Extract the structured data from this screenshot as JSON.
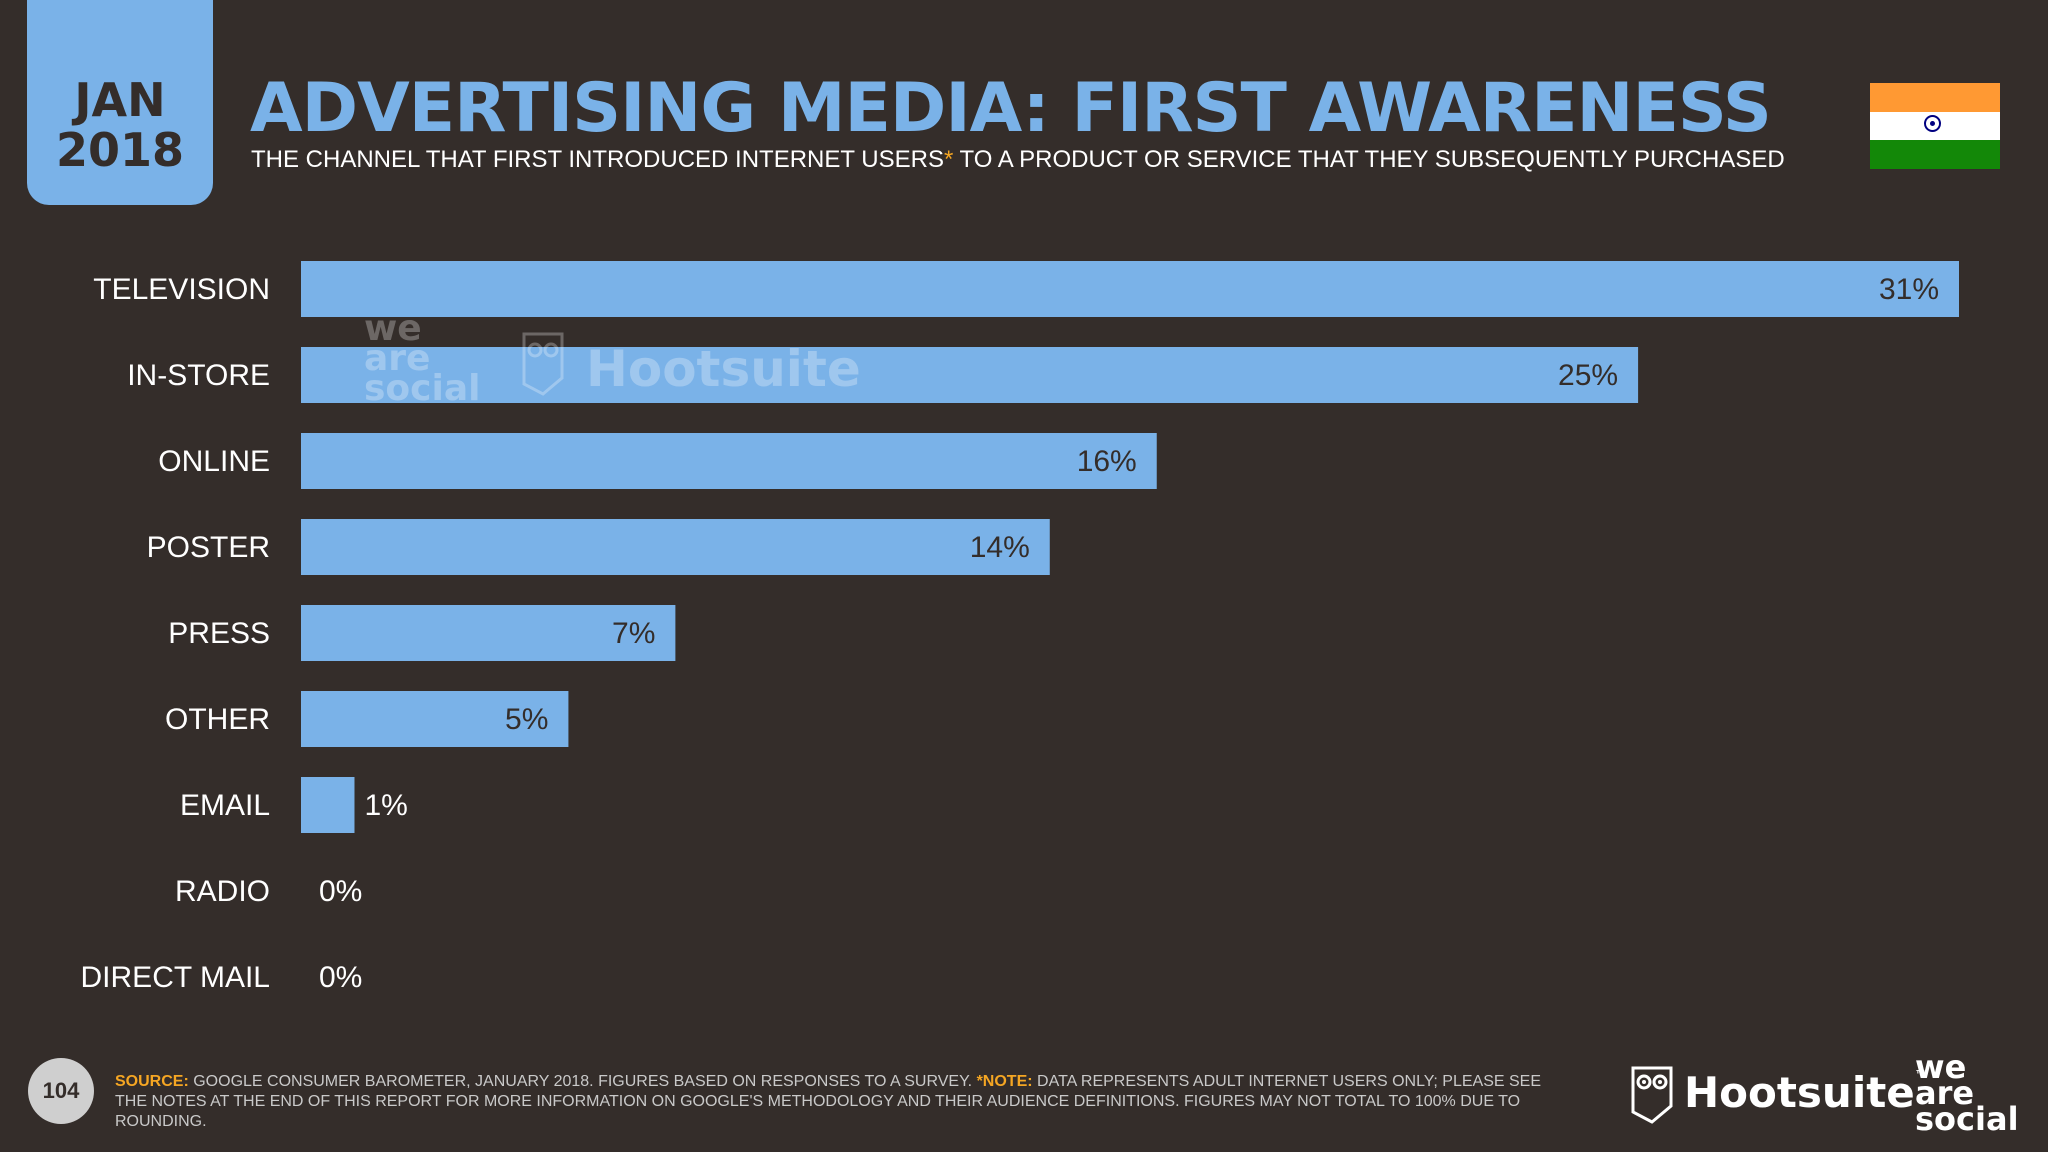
{
  "date_tab": {
    "month": "JAN",
    "year": "2018"
  },
  "title": "ADVERTISING MEDIA: FIRST AWARENESS",
  "subtitle": {
    "before": "THE CHANNEL THAT FIRST INTRODUCED INTERNET USERS",
    "asterisk": "*",
    "after": " TO A PRODUCT OR SERVICE THAT THEY SUBSEQUENTLY PURCHASED"
  },
  "flag": {
    "country": "india-flag-icon",
    "colors": {
      "saffron": "#ff9933",
      "white": "#ffffff",
      "green": "#138808",
      "chakra": "#000080"
    }
  },
  "colors": {
    "background": "#342d2a",
    "bar": "#7ab2e8",
    "accent": "#f5a623"
  },
  "chart_data": {
    "type": "bar",
    "orientation": "horizontal",
    "categories": [
      "TELEVISION",
      "IN-STORE",
      "ONLINE",
      "POSTER",
      "PRESS",
      "OTHER",
      "EMAIL",
      "RADIO",
      "DIRECT MAIL"
    ],
    "values": [
      31,
      25,
      16,
      14,
      7,
      5,
      1,
      0,
      0
    ],
    "data_labels": [
      "31%",
      "25%",
      "16%",
      "14%",
      "7%",
      "5%",
      "1%",
      "0%",
      "0%"
    ],
    "unit": "%",
    "xlim": [
      0,
      31
    ],
    "grid": false,
    "legend": "none"
  },
  "watermark": {
    "we_are_social": "we are social",
    "hootsuite": "Hootsuite"
  },
  "footer": {
    "page_number": "104",
    "source_label": "SOURCE:",
    "source_text": " GOOGLE CONSUMER BAROMETER, JANUARY 2018. FIGURES BASED ON RESPONSES TO A SURVEY. ",
    "note_label": "*NOTE:",
    "note_text": " DATA REPRESENTS ADULT INTERNET USERS ONLY; PLEASE SEE THE NOTES AT THE END OF THIS REPORT FOR MORE INFORMATION ON GOOGLE'S METHODOLOGY AND THEIR AUDIENCE DEFINITIONS. FIGURES MAY NOT TOTAL TO 100% DUE TO ROUNDING.",
    "hootsuite_logo": "Hootsuite",
    "hootsuite_tm": "™",
    "was_logo": [
      "we",
      "are",
      "social"
    ]
  }
}
